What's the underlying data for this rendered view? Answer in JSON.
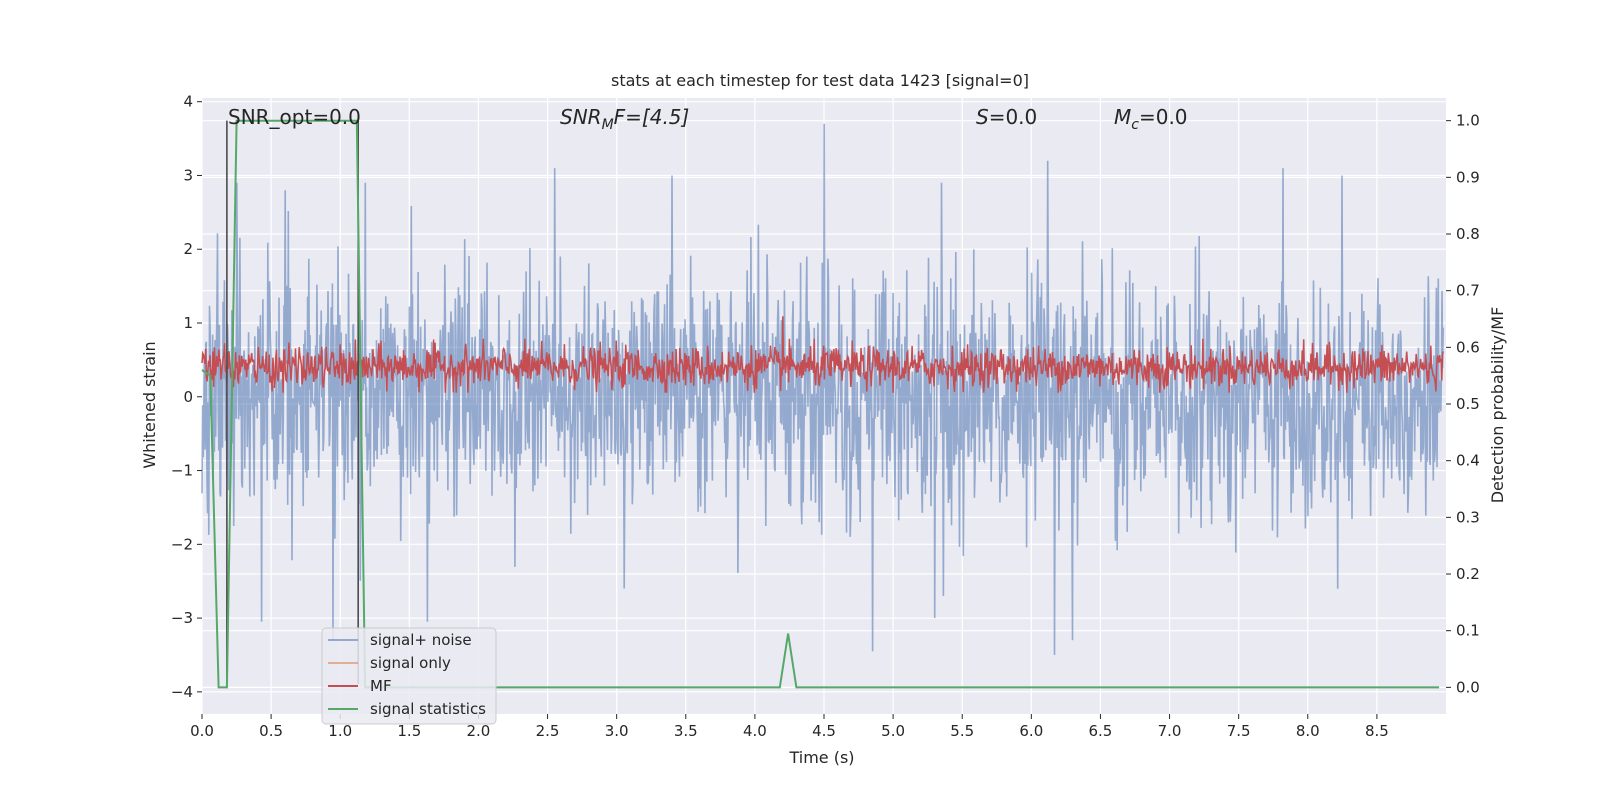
{
  "chart_data": {
    "type": "line",
    "title": "stats at each timestep for test data 1423 [signal=0]",
    "xlabel": "Time (s)",
    "ylabel_left": "Whitened strain",
    "ylabel_right": "Detection probability/MF",
    "xlim": [
      0.0,
      9.0
    ],
    "ylim_left": [
      -4.3,
      4.05
    ],
    "ylim_right": [
      -0.047,
      1.04
    ],
    "xticks": [
      "0.0",
      "0.5",
      "1.0",
      "1.5",
      "2.0",
      "2.5",
      "3.0",
      "3.5",
      "4.0",
      "4.5",
      "5.0",
      "5.5",
      "6.0",
      "6.5",
      "7.0",
      "7.5",
      "8.0",
      "8.5"
    ],
    "yticks_left": [
      "−4",
      "−3",
      "−2",
      "−1",
      "0",
      "1",
      "2",
      "3",
      "4"
    ],
    "yticks_right": [
      "0.0",
      "0.1",
      "0.2",
      "0.3",
      "0.4",
      "0.5",
      "0.6",
      "0.7",
      "0.8",
      "0.9",
      "1.0"
    ],
    "grid": true,
    "legend_position": "lower-left",
    "annotations": {
      "snr_opt": "SNR_opt=0.0",
      "snr_mf_main": "SNR",
      "snr_mf_sub": "M",
      "snr_mf_rest": "F=[4.5]",
      "s_main": "S",
      "s_rest": "=0.0",
      "mc_main": "M",
      "mc_sub": "c",
      "mc_rest": "=0.0"
    },
    "series": [
      {
        "name": "signal+ noise",
        "color": "#4c72b0",
        "axis": "left",
        "description_values": "whitened strain noise, roughly ±2 with peaks to 3.7 and -3.5, approx 0..9 s",
        "peaks": [
          [
            0.25,
            2.9
          ],
          [
            0.6,
            2.8
          ],
          [
            1.18,
            2.9
          ],
          [
            2.55,
            3.1
          ],
          [
            3.4,
            3.0
          ],
          [
            4.5,
            3.7
          ],
          [
            5.35,
            2.9
          ],
          [
            6.12,
            3.2
          ],
          [
            7.82,
            3.1
          ],
          [
            8.25,
            3.0
          ]
        ],
        "troughs": [
          [
            0.43,
            -3.05
          ],
          [
            0.95,
            -3.3
          ],
          [
            1.63,
            -3.05
          ],
          [
            4.85,
            -3.45
          ],
          [
            5.3,
            -3.0
          ],
          [
            6.17,
            -3.5
          ],
          [
            6.3,
            -3.3
          ]
        ]
      },
      {
        "name": "signal only",
        "color": "#dd8452",
        "axis": "left",
        "values": []
      },
      {
        "name": "MF",
        "color": "#c44e52",
        "axis": "right",
        "description_values": "matched filter output oscillating around 0.55 (range ~0.52–0.62), spike to 0.65 at ~4.2 s"
      },
      {
        "name": "signal statistics",
        "color": "#55a868",
        "axis": "right",
        "x": [
          0.0,
          0.06,
          0.12,
          0.18,
          0.25,
          0.3,
          1.12,
          1.18,
          1.24,
          4.18,
          4.24,
          4.3,
          8.95
        ],
        "values": [
          0.56,
          0.55,
          0.0,
          0.0,
          1.0,
          1.0,
          1.0,
          0.0,
          0.0,
          0.0,
          0.095,
          0.0,
          0.0
        ]
      }
    ],
    "vertical_lines": [
      0.18,
      1.13
    ],
    "vertical_line_color": "#4d4d4d"
  }
}
